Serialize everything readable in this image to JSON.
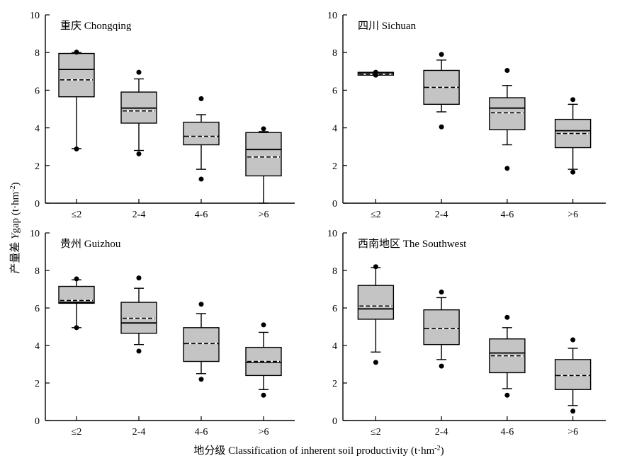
{
  "figure": {
    "ylabel": {
      "prefix": "产量差 ",
      "italic": "Y",
      "main": "gap (t·hm",
      "sup": "-2",
      "suffix": ")"
    },
    "xlabel": {
      "main": "地分级 Classification of inherent soil productivity (t·hm",
      "sup": "-2",
      "suffix": ")"
    }
  },
  "chart_data": [
    {
      "type": "box",
      "title": "重庆 Chongqing",
      "categories": [
        "≤2",
        "2-4",
        "4-6",
        ">6"
      ],
      "ylim": [
        0,
        10
      ],
      "yticks": [
        0,
        2,
        4,
        6,
        8,
        10
      ],
      "boxes": [
        {
          "q1": 5.65,
          "median": 7.1,
          "mean": 6.55,
          "q3": 7.95,
          "whisker_low": 2.9,
          "whisker_high": 8.0,
          "outliers": [
            2.88,
            8.02
          ]
        },
        {
          "q1": 4.25,
          "median": 5.05,
          "mean": 4.9,
          "q3": 5.9,
          "whisker_low": 2.8,
          "whisker_high": 6.6,
          "outliers": [
            2.62,
            6.95
          ]
        },
        {
          "q1": 3.1,
          "median": 3.55,
          "mean": 3.55,
          "q3": 4.3,
          "whisker_low": 1.8,
          "whisker_high": 4.7,
          "outliers": [
            1.28,
            5.55
          ]
        },
        {
          "q1": 1.45,
          "median": 2.85,
          "mean": 2.45,
          "q3": 3.75,
          "whisker_low": 0.0,
          "whisker_high": 3.8,
          "outliers": [
            3.95
          ]
        }
      ]
    },
    {
      "type": "box",
      "title": "四川 Sichuan",
      "categories": [
        "≤2",
        "2-4",
        "4-6",
        ">6"
      ],
      "ylim": [
        0,
        10
      ],
      "yticks": [
        0,
        2,
        4,
        6,
        8,
        10
      ],
      "boxes": [
        {
          "q1": 6.8,
          "median": 6.9,
          "mean": 6.85,
          "q3": 6.95,
          "whisker_low": 6.8,
          "whisker_high": 6.95,
          "outliers": [
            6.8,
            6.95
          ]
        },
        {
          "q1": 5.25,
          "median": 6.15,
          "mean": 6.15,
          "q3": 7.05,
          "whisker_low": 4.85,
          "whisker_high": 7.6,
          "outliers": [
            4.05,
            7.9
          ]
        },
        {
          "q1": 3.9,
          "median": 5.05,
          "mean": 4.8,
          "q3": 5.6,
          "whisker_low": 3.1,
          "whisker_high": 6.25,
          "outliers": [
            1.85,
            7.05
          ]
        },
        {
          "q1": 2.95,
          "median": 3.85,
          "mean": 3.7,
          "q3": 4.45,
          "whisker_low": 1.8,
          "whisker_high": 5.25,
          "outliers": [
            1.65,
            5.5
          ]
        }
      ]
    },
    {
      "type": "box",
      "title": "贵州 Guizhou",
      "categories": [
        "≤2",
        "2-4",
        "4-6",
        ">6"
      ],
      "ylim": [
        0,
        10
      ],
      "yticks": [
        0,
        2,
        4,
        6,
        8,
        10
      ],
      "boxes": [
        {
          "q1": 6.25,
          "median": 6.3,
          "mean": 6.4,
          "q3": 7.15,
          "whisker_low": 4.95,
          "whisker_high": 7.5,
          "outliers": [
            4.95,
            7.55
          ]
        },
        {
          "q1": 4.65,
          "median": 5.2,
          "mean": 5.45,
          "q3": 6.3,
          "whisker_low": 4.05,
          "whisker_high": 7.05,
          "outliers": [
            3.7,
            7.6
          ]
        },
        {
          "q1": 3.15,
          "median": 4.1,
          "mean": 4.1,
          "q3": 4.95,
          "whisker_low": 2.5,
          "whisker_high": 5.7,
          "outliers": [
            2.2,
            6.2
          ]
        },
        {
          "q1": 2.4,
          "median": 3.1,
          "mean": 3.15,
          "q3": 3.9,
          "whisker_low": 1.65,
          "whisker_high": 4.7,
          "outliers": [
            1.35,
            5.1
          ]
        }
      ]
    },
    {
      "type": "box",
      "title": "西南地区 The Southwest",
      "categories": [
        "≤2",
        "2-4",
        "4-6",
        ">6"
      ],
      "ylim": [
        0,
        10
      ],
      "yticks": [
        0,
        2,
        4,
        6,
        8,
        10
      ],
      "boxes": [
        {
          "q1": 5.4,
          "median": 5.95,
          "mean": 6.1,
          "q3": 7.2,
          "whisker_low": 3.65,
          "whisker_high": 8.15,
          "outliers": [
            3.1,
            8.2
          ]
        },
        {
          "q1": 4.05,
          "median": 4.9,
          "mean": 4.9,
          "q3": 5.9,
          "whisker_low": 3.25,
          "whisker_high": 6.55,
          "outliers": [
            2.9,
            6.85
          ]
        },
        {
          "q1": 2.55,
          "median": 3.6,
          "mean": 3.45,
          "q3": 4.35,
          "whisker_low": 1.7,
          "whisker_high": 4.95,
          "outliers": [
            1.35,
            5.5
          ]
        },
        {
          "q1": 1.65,
          "median": 2.4,
          "mean": 2.4,
          "q3": 3.25,
          "whisker_low": 0.8,
          "whisker_high": 3.85,
          "outliers": [
            0.5,
            4.3
          ]
        }
      ]
    }
  ]
}
